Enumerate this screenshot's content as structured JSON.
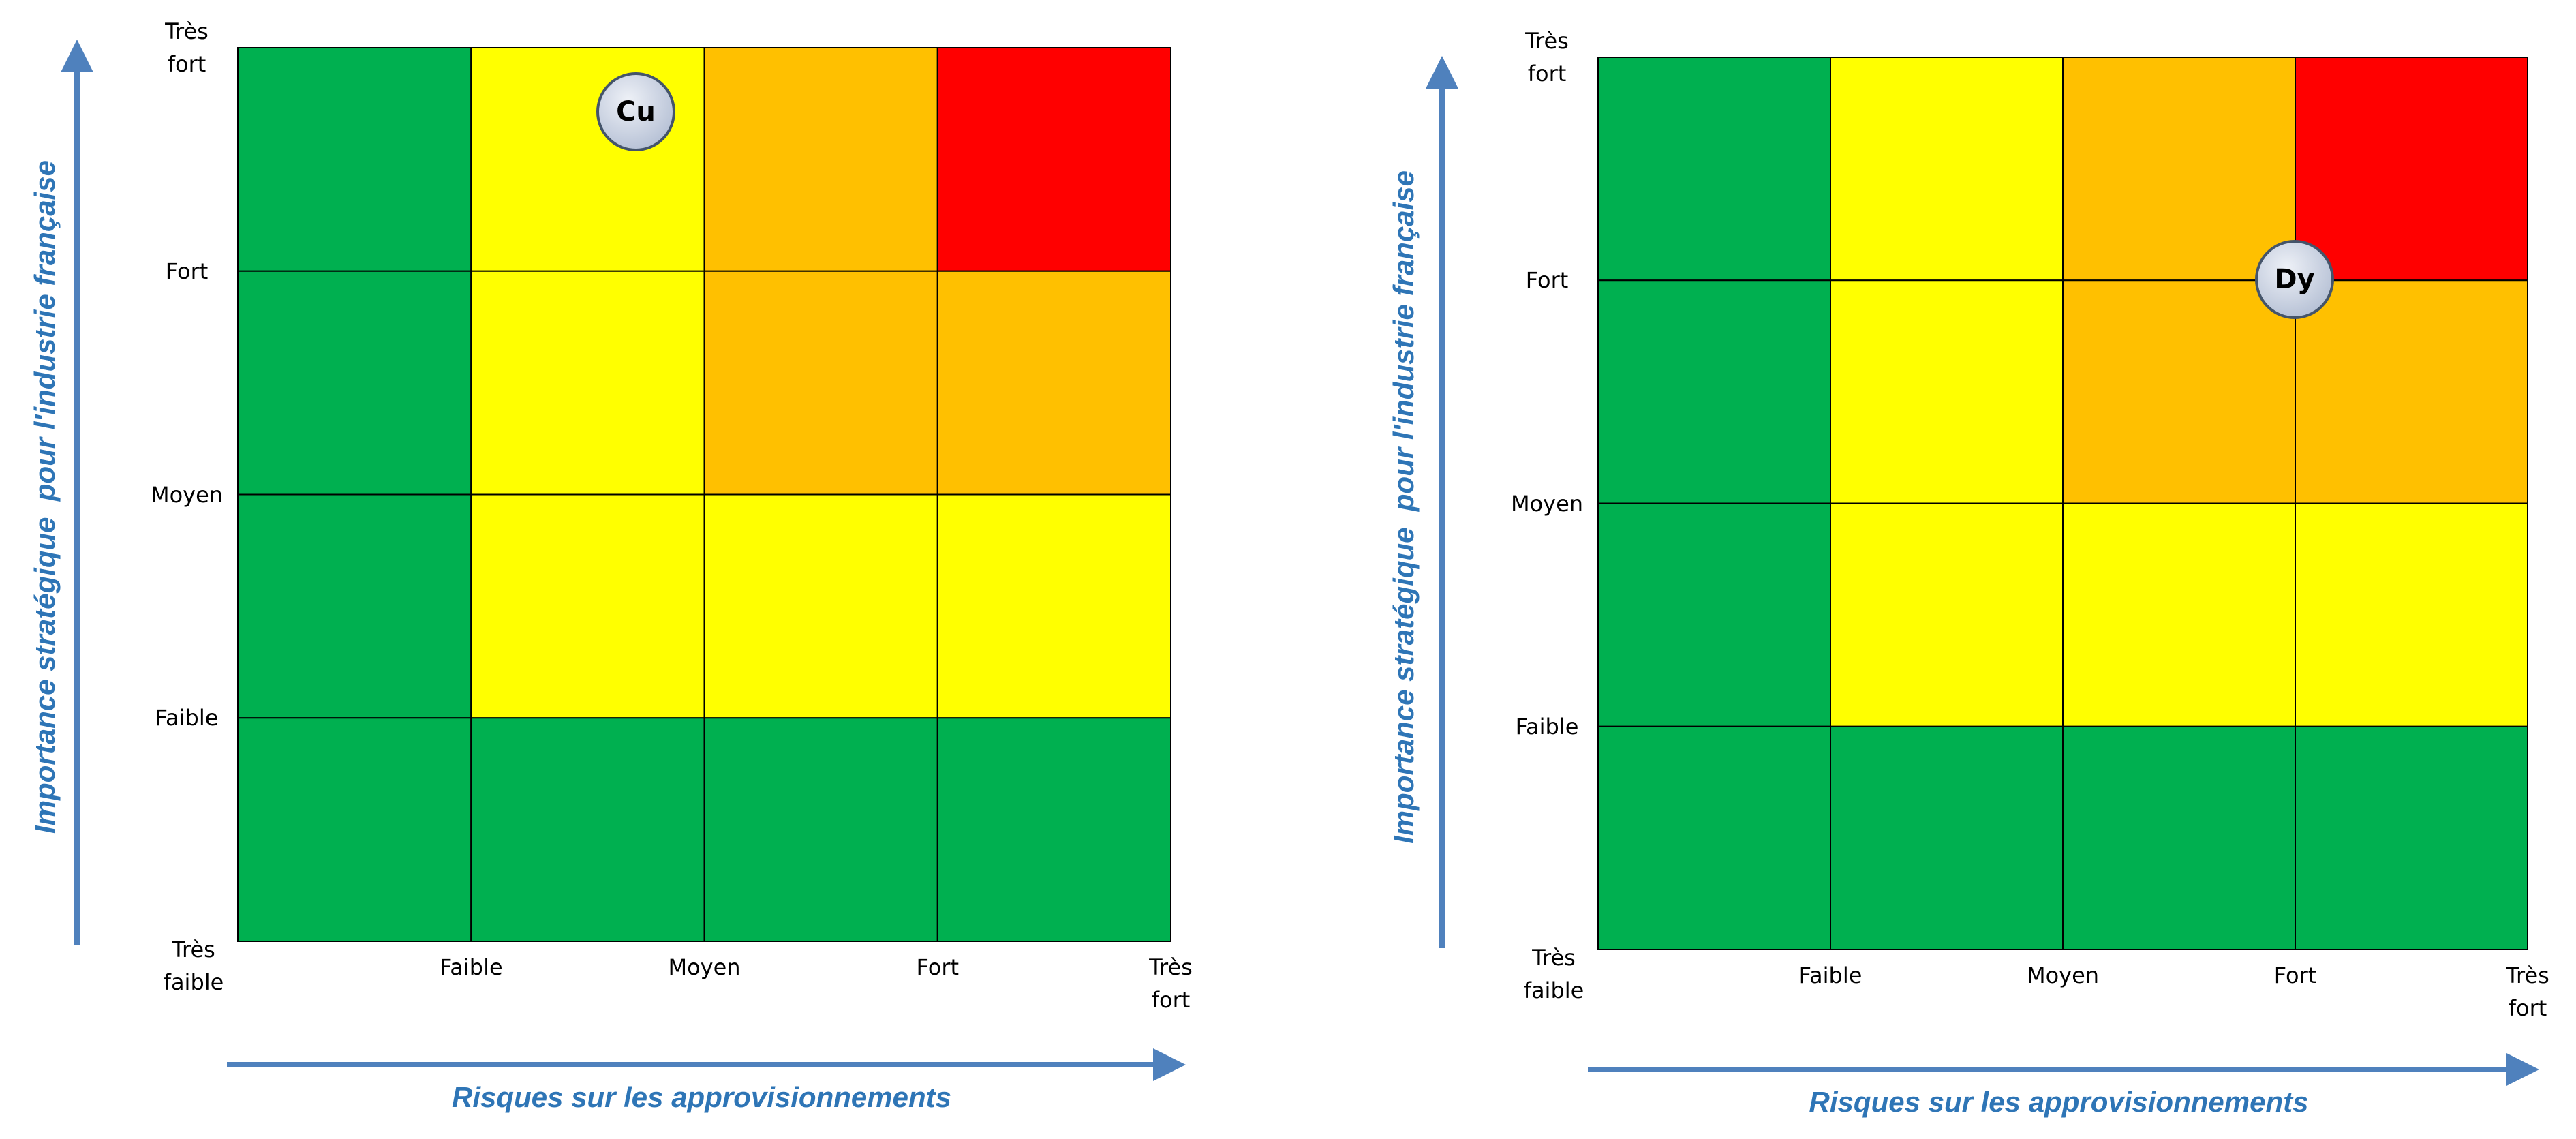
{
  "matrices": [
    {
      "y_axis_title": "Importance stratégique  pour l'industrie française",
      "x_axis_title": "Risques sur les approvisionnements",
      "y_labels": [
        "Très fort",
        "Fort",
        "Moyen",
        "Faible"
      ],
      "corner_label": "Très faible",
      "x_labels": [
        "Faible",
        "Moyen",
        "Fort",
        "Très fort"
      ],
      "cells": [
        [
          "#00b050",
          "#ffff00",
          "#ffc000",
          "#ff0000"
        ],
        [
          "#00b050",
          "#ffff00",
          "#ffc000",
          "#ffc000"
        ],
        [
          "#00b050",
          "#ffff00",
          "#ffff00",
          "#ffff00"
        ],
        [
          "#00b050",
          "#00b050",
          "#00b050",
          "#00b050"
        ]
      ],
      "marker": "Cu"
    },
    {
      "y_axis_title": "Importance stratégique  pour l'industrie française",
      "x_axis_title": "Risques sur les approvisionnements",
      "y_labels": [
        "Très fort",
        "Fort",
        "Moyen",
        "Faible"
      ],
      "corner_label": "Très faible",
      "x_labels": [
        "Faible",
        "Moyen",
        "Fort",
        "Très fort"
      ],
      "cells": [
        [
          "#00b050",
          "#ffff00",
          "#ffc000",
          "#ff0000"
        ],
        [
          "#00b050",
          "#ffff00",
          "#ffc000",
          "#ffc000"
        ],
        [
          "#00b050",
          "#ffff00",
          "#ffff00",
          "#ffff00"
        ],
        [
          "#00b050",
          "#00b050",
          "#00b050",
          "#00b050"
        ]
      ],
      "marker": "Dy"
    }
  ]
}
